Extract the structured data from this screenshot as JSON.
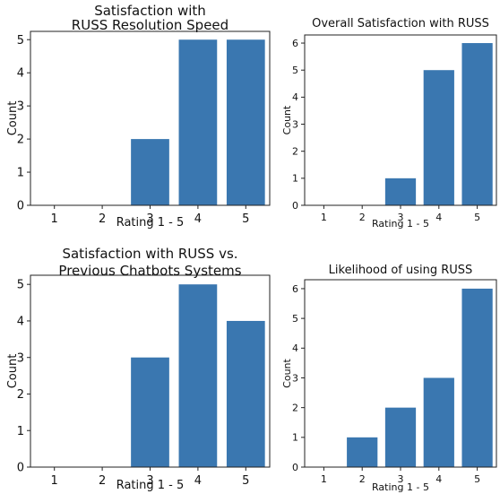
{
  "chart_data": [
    {
      "type": "bar",
      "title_lines": [
        "Satisfaction with",
        "RUSS Resolution Speed"
      ],
      "xlabel": "Rating 1 - 5",
      "ylabel": "Count",
      "categories": [
        "1",
        "2",
        "3",
        "4",
        "5"
      ],
      "values": [
        0,
        0,
        2,
        5,
        5
      ],
      "ylim": [
        0,
        5.25
      ],
      "yticks": [
        0,
        1,
        2,
        3,
        4,
        5
      ],
      "grid": false,
      "color": "#3a77b0"
    },
    {
      "type": "bar",
      "title_lines": [
        "Overall Satisfaction with RUSS"
      ],
      "xlabel": "Rating 1 - 5",
      "ylabel": "Count",
      "categories": [
        "1",
        "2",
        "3",
        "4",
        "5"
      ],
      "values": [
        0,
        0,
        1,
        5,
        6
      ],
      "ylim": [
        0,
        6.3
      ],
      "yticks": [
        0,
        1,
        2,
        3,
        4,
        5,
        6
      ],
      "grid": false,
      "color": "#3a77b0"
    },
    {
      "type": "bar",
      "title_lines": [
        "Satisfaction with RUSS vs.",
        "Previous Chatbots Systems"
      ],
      "xlabel": "Rating 1 - 5",
      "ylabel": "Count",
      "categories": [
        "1",
        "2",
        "3",
        "4",
        "5"
      ],
      "values": [
        0,
        0,
        3,
        5,
        4
      ],
      "ylim": [
        0,
        5.25
      ],
      "yticks": [
        0,
        1,
        2,
        3,
        4,
        5
      ],
      "grid": false,
      "color": "#3a77b0"
    },
    {
      "type": "bar",
      "title_lines": [
        "Likelihood of using RUSS"
      ],
      "xlabel": "Rating 1 - 5",
      "ylabel": "Count",
      "categories": [
        "1",
        "2",
        "3",
        "4",
        "5"
      ],
      "values": [
        0,
        1,
        2,
        3,
        6
      ],
      "ylim": [
        0,
        6.3
      ],
      "yticks": [
        0,
        1,
        2,
        3,
        4,
        5,
        6
      ],
      "grid": false,
      "color": "#3a77b0"
    }
  ]
}
